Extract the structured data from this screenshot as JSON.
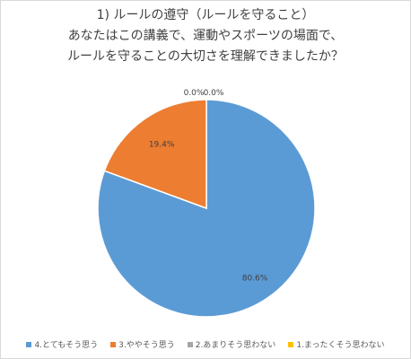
{
  "chart_data": {
    "type": "pie",
    "title_lines": [
      "1) ルールの遵守（ルールを守ること）",
      "あなたはこの講義で、運動やスポーツの場面で、",
      "ルールを守ることの大切さを理解できましたか？"
    ],
    "categories": [
      "4.とてもそう思う",
      "3.ややそう思う",
      "2.あまりそう思わない",
      "1.まったくそう思わない"
    ],
    "values": [
      80.6,
      19.4,
      0.0,
      0.0
    ],
    "data_labels": [
      "80.6%",
      "19.4%",
      "0.0%",
      "0.0%"
    ],
    "colors": [
      "#5b9bd5",
      "#ed7d31",
      "#a5a5a5",
      "#ffc000"
    ],
    "legend_position": "bottom"
  }
}
